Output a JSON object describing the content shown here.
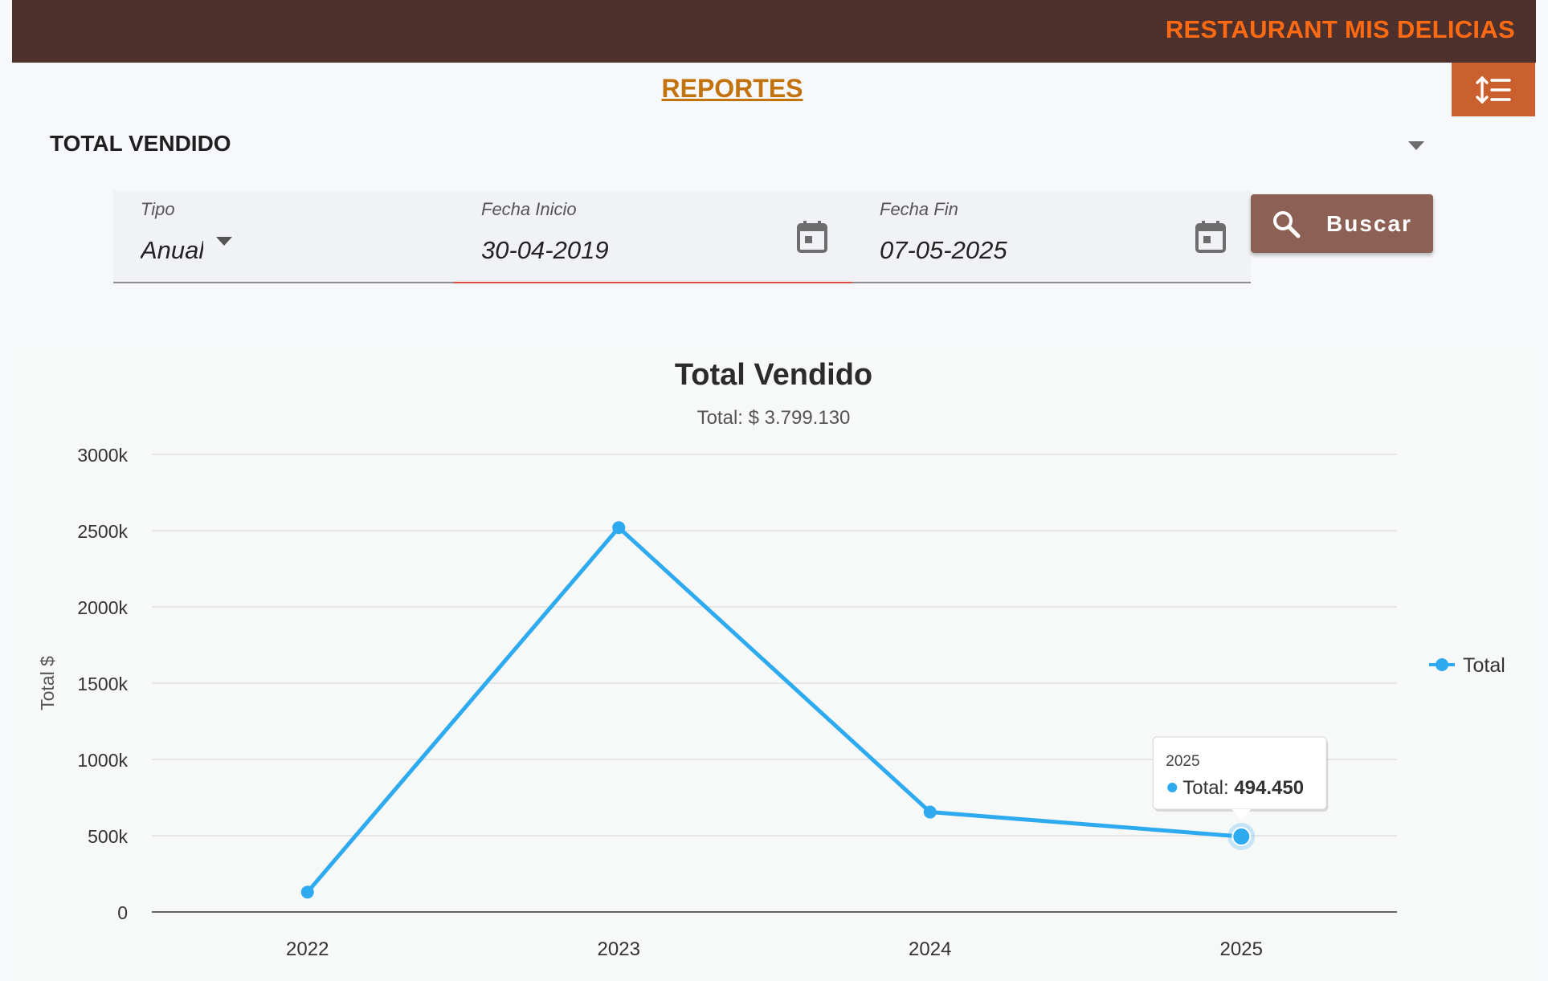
{
  "header": {
    "brand": "RESTAURANT MIS DELICIAS",
    "menu_icon": "list-ordered-icon"
  },
  "page": {
    "title": "REPORTES",
    "section_title": "TOTAL VENDIDO"
  },
  "filters": {
    "tipo": {
      "label": "Tipo",
      "value": "Anual"
    },
    "fecha_inicio": {
      "label": "Fecha Inicio",
      "value": "30-04-2019"
    },
    "fecha_fin": {
      "label": "Fecha Fin",
      "value": "07-05-2025"
    },
    "search_button": "Buscar"
  },
  "colors": {
    "header_bg": "#4e312d",
    "brand": "#ff6a13",
    "menu_button": "#c9602d",
    "title": "#c3730e",
    "button": "#8d6055",
    "series": "#2eaaf0"
  },
  "chart_data": {
    "type": "line",
    "title": "Total Vendido",
    "subtitle": "Total: $ 3.799.130",
    "ylabel": "Total $",
    "xlabel": "",
    "ylim": [
      0,
      3000000
    ],
    "yticks": [
      0,
      500000,
      1000000,
      1500000,
      2000000,
      2500000,
      3000000
    ],
    "ytick_labels": [
      "0",
      "500k",
      "1000k",
      "1500k",
      "2000k",
      "2500k",
      "3000k"
    ],
    "categories": [
      "2022",
      "2023",
      "2024",
      "2025"
    ],
    "series": [
      {
        "name": "Total",
        "values": [
          130000,
          2520000,
          655000,
          494450
        ]
      }
    ],
    "grid": true,
    "legend": "right",
    "tooltip": {
      "category": "2025",
      "series": "Total",
      "value_label": "494.450"
    }
  }
}
